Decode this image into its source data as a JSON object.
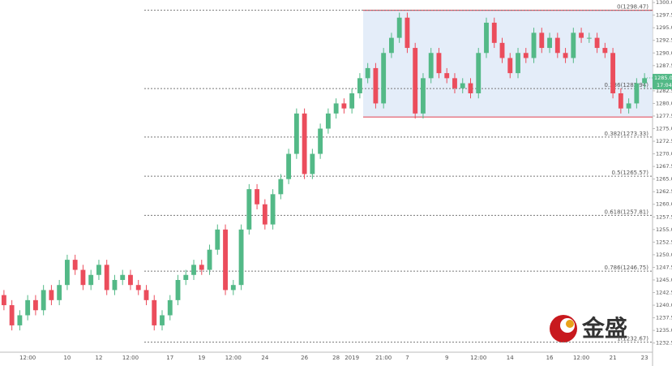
{
  "chart_data": {
    "type": "candlestick",
    "categories": [
      null,
      null,
      null,
      "12:00",
      null,
      null,
      null,
      null,
      "10",
      null,
      null,
      null,
      "12",
      null,
      null,
      null,
      "12:00",
      null,
      null,
      null,
      null,
      "17",
      null,
      null,
      null,
      "19",
      null,
      null,
      null,
      "12:00",
      null,
      null,
      null,
      "24",
      null,
      null,
      null,
      null,
      "26",
      null,
      null,
      null,
      "28",
      null,
      "2019",
      null,
      null,
      null,
      "21:00",
      null,
      null,
      "7",
      null,
      null,
      null,
      null,
      "9",
      null,
      null,
      null,
      "12:00",
      null,
      null,
      null,
      "14",
      null,
      null,
      null,
      null,
      "16",
      null,
      null,
      null,
      "12:00",
      null,
      null,
      null,
      "21",
      null,
      null,
      null,
      "23"
    ],
    "open": [
      1242,
      1240,
      1236,
      1238,
      1241,
      1239,
      1243,
      1241,
      1244,
      1249,
      1247,
      1244,
      1246,
      1248,
      1243,
      1245,
      1246,
      1244,
      1243,
      1241,
      1236,
      1238,
      1241,
      1245,
      1246,
      1248,
      1247,
      1251,
      1255,
      1243,
      1244,
      1255,
      1263,
      1260,
      1256,
      1262,
      1265,
      1270,
      1278,
      1266,
      1270,
      1275,
      1278,
      1280,
      1279,
      1282,
      1285,
      1287,
      1280,
      1290,
      1293,
      1297,
      1291,
      1278,
      1285,
      1290,
      1286,
      1285,
      1283,
      1284,
      1282,
      1290,
      1296,
      1292,
      1289,
      1286,
      1290,
      1289,
      1294,
      1291,
      1293,
      1290,
      1289,
      1294,
      1293,
      1293,
      1291,
      1290,
      1282,
      1279,
      1280,
      1284
    ],
    "high": [
      1243,
      1241,
      1239,
      1242,
      1242,
      1244,
      1244,
      1245,
      1250,
      1250,
      1248,
      1247,
      1249,
      1249,
      1246,
      1247,
      1247,
      1245,
      1244,
      1242,
      1239,
      1242,
      1246,
      1247,
      1249,
      1249,
      1252,
      1256,
      1256,
      1245,
      1256,
      1264,
      1264,
      1261,
      1263,
      1266,
      1271,
      1279,
      1279,
      1271,
      1276,
      1279,
      1281,
      1281,
      1283,
      1286,
      1288,
      1288,
      1291,
      1294,
      1298,
      1298,
      1292,
      1286,
      1291,
      1291,
      1287,
      1286,
      1285,
      1285,
      1291,
      1297,
      1297,
      1293,
      1290,
      1291,
      1291,
      1295,
      1295,
      1294,
      1294,
      1291,
      1295,
      1295,
      1294,
      1294,
      1292,
      1291,
      1283,
      1281,
      1285,
      1286
    ],
    "low": [
      1239,
      1235,
      1235,
      1237,
      1238,
      1238,
      1240,
      1240,
      1243,
      1246,
      1243,
      1243,
      1245,
      1242,
      1242,
      1244,
      1243,
      1242,
      1240,
      1235,
      1235,
      1237,
      1240,
      1244,
      1245,
      1246,
      1246,
      1250,
      1242,
      1242,
      1243,
      1254,
      1259,
      1255,
      1255,
      1261,
      1264,
      1269,
      1265,
      1265,
      1269,
      1274,
      1277,
      1278,
      1278,
      1281,
      1284,
      1279,
      1279,
      1289,
      1292,
      1290,
      1277,
      1277,
      1284,
      1285,
      1284,
      1282,
      1282,
      1281,
      1281,
      1289,
      1291,
      1288,
      1285,
      1285,
      1288,
      1288,
      1290,
      1290,
      1289,
      1288,
      1288,
      1292,
      1292,
      1290,
      1289,
      1281,
      1278,
      1278,
      1279,
      1283
    ],
    "close": [
      1240,
      1236,
      1238,
      1241,
      1239,
      1243,
      1241,
      1244,
      1249,
      1247,
      1244,
      1246,
      1248,
      1243,
      1245,
      1246,
      1244,
      1243,
      1241,
      1236,
      1238,
      1241,
      1245,
      1246,
      1248,
      1247,
      1251,
      1255,
      1243,
      1244,
      1255,
      1263,
      1260,
      1256,
      1262,
      1265,
      1270,
      1278,
      1266,
      1270,
      1275,
      1278,
      1280,
      1279,
      1282,
      1285,
      1287,
      1280,
      1290,
      1293,
      1297,
      1291,
      1278,
      1285,
      1290,
      1286,
      1285,
      1283,
      1284,
      1282,
      1290,
      1296,
      1292,
      1289,
      1286,
      1290,
      1289,
      1294,
      1291,
      1293,
      1290,
      1289,
      1294,
      1293,
      1293,
      1291,
      1290,
      1282,
      1279,
      1280,
      1284,
      1285
    ],
    "up_color": "#53b987",
    "down_color": "#eb4d5c",
    "ylim": [
      1231,
      1300.5
    ],
    "yticks": [
      {
        "value": 1232.5,
        "label": "1232.50"
      },
      {
        "value": 1235,
        "label": "1235.00"
      },
      {
        "value": 1237.5,
        "label": "1237.50"
      },
      {
        "value": 1240,
        "label": "1240.00"
      },
      {
        "value": 1242.5,
        "label": "1242.50"
      },
      {
        "value": 1245,
        "label": "1245.00"
      },
      {
        "value": 1247.5,
        "label": "1247.50"
      },
      {
        "value": 1250,
        "label": "1250.00"
      },
      {
        "value": 1252.5,
        "label": "1252.50"
      },
      {
        "value": 1255,
        "label": "1255.00"
      },
      {
        "value": 1257.5,
        "label": "1257.50"
      },
      {
        "value": 1260,
        "label": "1260.00"
      },
      {
        "value": 1262.5,
        "label": "1262.50"
      },
      {
        "value": 1265,
        "label": "1265.00"
      },
      {
        "value": 1267.5,
        "label": "1267.50"
      },
      {
        "value": 1270,
        "label": "1270.00"
      },
      {
        "value": 1272.5,
        "label": "1272.50"
      },
      {
        "value": 1275,
        "label": "1275.00"
      },
      {
        "value": 1277.5,
        "label": "1277.50"
      },
      {
        "value": 1280,
        "label": "1280.00"
      },
      {
        "value": 1282.5,
        "label": "1282.50"
      },
      {
        "value": 1285,
        "label": "1285.00"
      },
      {
        "value": 1287.5,
        "label": "1287.50"
      },
      {
        "value": 1290,
        "label": "1290.00"
      },
      {
        "value": 1292.5,
        "label": "1292.50"
      },
      {
        "value": 1295,
        "label": "1295.00"
      },
      {
        "value": 1297.5,
        "label": "1297.50"
      },
      {
        "value": 1300,
        "label": "1300.00"
      }
    ],
    "fib_levels": [
      {
        "label": "0(1298.47)",
        "value": 1298.47
      },
      {
        "label": "0.236(1282.94)",
        "value": 1282.94
      },
      {
        "label": "0.382(1273.33)",
        "value": 1273.33
      },
      {
        "label": "0.5(1265.57)",
        "value": 1265.57
      },
      {
        "label": "0.618(1257.81)",
        "value": 1257.81
      },
      {
        "label": "0.786(1246.75)",
        "value": 1246.75
      },
      {
        "label": "1(1232.67)",
        "value": 1232.67
      }
    ],
    "range_box": {
      "high": 1298.47,
      "low": 1277.3,
      "color": "#e25563"
    },
    "last_price": 1285.05,
    "countdown": "17:04",
    "logo_text": "金盛"
  }
}
